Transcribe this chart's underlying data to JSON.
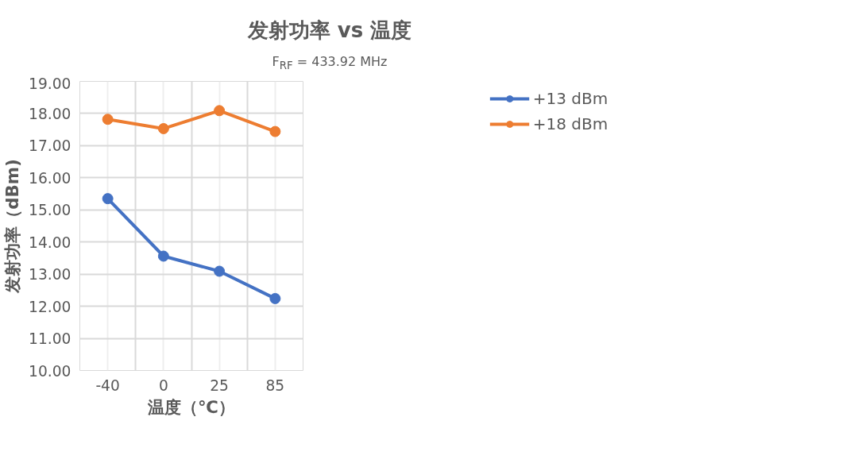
{
  "chart_data": {
    "type": "line",
    "title": "发射功率 vs 温度",
    "subtitle": "F$_{RF}$ = 433.92 MHz",
    "xlabel": "温度（℃）",
    "ylabel": "发射功率（dBm)",
    "categories": [
      "-40",
      "0",
      "25",
      "85"
    ],
    "series": [
      {
        "name": "+13 dBm",
        "color": "#4472c4",
        "values": [
          15.35,
          13.56,
          13.09,
          12.24
        ]
      },
      {
        "name": "+18 dBm",
        "color": "#ed7d31",
        "values": [
          17.82,
          17.53,
          18.09,
          17.44
        ]
      }
    ],
    "ylim": [
      10,
      19
    ],
    "yticks": [
      {
        "value": 10,
        "label": "10.00"
      },
      {
        "value": 11,
        "label": "11.00"
      },
      {
        "value": 12,
        "label": "12.00"
      },
      {
        "value": 13,
        "label": "13.00"
      },
      {
        "value": 14,
        "label": "14.00"
      },
      {
        "value": 15,
        "label": "15.00"
      },
      {
        "value": 16,
        "label": "16.00"
      },
      {
        "value": 17,
        "label": "17.00"
      },
      {
        "value": 18,
        "label": "18.00"
      },
      {
        "value": 19,
        "label": "19.00"
      }
    ],
    "grid": true,
    "legend": "top right",
    "marker": "circle",
    "line_style": "solid"
  }
}
